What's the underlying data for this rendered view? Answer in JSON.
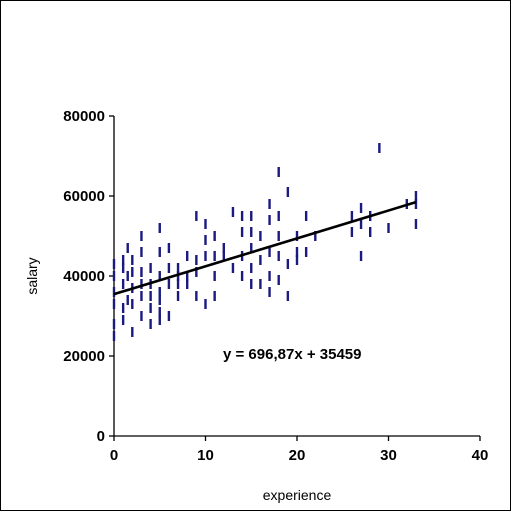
{
  "chart_data": {
    "type": "scatter",
    "xlabel": "experience",
    "ylabel": "salary",
    "xlim": [
      0,
      40
    ],
    "ylim": [
      0,
      80000
    ],
    "x_ticks": [
      "0",
      "10",
      "20",
      "30",
      "40"
    ],
    "y_ticks": [
      "0",
      "20000",
      "40000",
      "60000",
      "80000"
    ],
    "grid": false,
    "legend": "none",
    "marker": "short vertical dash",
    "marker_color": "#1a1a80",
    "trendline": {
      "type": "linear",
      "slope": 696.87,
      "intercept": 35459,
      "color": "#000000",
      "equation_label": "y = 696,87x + 35459"
    },
    "points": [
      [
        0,
        25000
      ],
      [
        0,
        28000
      ],
      [
        0,
        33000
      ],
      [
        0,
        36000
      ],
      [
        0,
        40000
      ],
      [
        0,
        43000
      ],
      [
        1,
        29000
      ],
      [
        1,
        32000
      ],
      [
        1,
        38000
      ],
      [
        1,
        42000
      ],
      [
        1,
        44000
      ],
      [
        1.5,
        34000
      ],
      [
        1.5,
        40000
      ],
      [
        1.5,
        47000
      ],
      [
        2,
        26000
      ],
      [
        2,
        33000
      ],
      [
        2,
        37000
      ],
      [
        2,
        41000
      ],
      [
        2,
        44000
      ],
      [
        3,
        30000
      ],
      [
        3,
        35000
      ],
      [
        3,
        38000
      ],
      [
        3,
        41000
      ],
      [
        3,
        46000
      ],
      [
        3,
        50000
      ],
      [
        4,
        28000
      ],
      [
        4,
        32000
      ],
      [
        4,
        35000
      ],
      [
        4,
        38000
      ],
      [
        4,
        42000
      ],
      [
        5,
        29000
      ],
      [
        5,
        31000
      ],
      [
        5,
        34000
      ],
      [
        5,
        36000
      ],
      [
        5,
        40000
      ],
      [
        5,
        46000
      ],
      [
        5,
        52000
      ],
      [
        6,
        30000
      ],
      [
        6,
        38000
      ],
      [
        6,
        42000
      ],
      [
        6,
        47000
      ],
      [
        7,
        35000
      ],
      [
        7,
        38000
      ],
      [
        7,
        40000
      ],
      [
        7,
        42000
      ],
      [
        8,
        38000
      ],
      [
        8,
        40000
      ],
      [
        8,
        45000
      ],
      [
        9,
        35000
      ],
      [
        9,
        41000
      ],
      [
        9,
        44000
      ],
      [
        9,
        55000
      ],
      [
        10,
        33000
      ],
      [
        10,
        45000
      ],
      [
        10,
        49000
      ],
      [
        10,
        53000
      ],
      [
        11,
        35000
      ],
      [
        11,
        40000
      ],
      [
        11,
        45000
      ],
      [
        11,
        50000
      ],
      [
        12,
        45000
      ],
      [
        12,
        47000
      ],
      [
        13,
        42000
      ],
      [
        13,
        56000
      ],
      [
        14,
        40000
      ],
      [
        14,
        45000
      ],
      [
        14,
        51000
      ],
      [
        14,
        55000
      ],
      [
        15,
        38000
      ],
      [
        15,
        42000
      ],
      [
        15,
        47000
      ],
      [
        15,
        51000
      ],
      [
        15,
        55000
      ],
      [
        16,
        38000
      ],
      [
        16,
        44000
      ],
      [
        16,
        50000
      ],
      [
        17,
        36000
      ],
      [
        17,
        40000
      ],
      [
        17,
        46000
      ],
      [
        17,
        54000
      ],
      [
        17,
        58000
      ],
      [
        18,
        39000
      ],
      [
        18,
        45000
      ],
      [
        18,
        50000
      ],
      [
        18,
        55000
      ],
      [
        18,
        66000
      ],
      [
        19,
        35000
      ],
      [
        19,
        43000
      ],
      [
        19,
        61000
      ],
      [
        20,
        44000
      ],
      [
        20,
        46000
      ],
      [
        20,
        50000
      ],
      [
        21,
        46000
      ],
      [
        21,
        55000
      ],
      [
        22,
        50000
      ],
      [
        26,
        51000
      ],
      [
        26,
        55000
      ],
      [
        27,
        45000
      ],
      [
        27,
        53000
      ],
      [
        27,
        57000
      ],
      [
        28,
        51000
      ],
      [
        28,
        55000
      ],
      [
        29,
        72000
      ],
      [
        30,
        52000
      ],
      [
        32,
        58000
      ],
      [
        33,
        53000
      ],
      [
        33,
        58000
      ],
      [
        33,
        60000
      ]
    ]
  }
}
